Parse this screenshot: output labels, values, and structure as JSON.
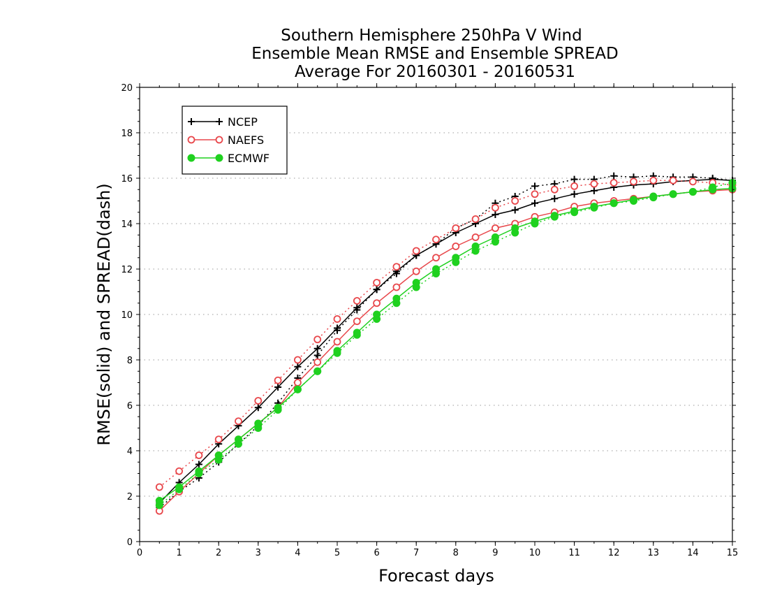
{
  "chart_data": {
    "type": "line",
    "title": [
      "Southern Hemisphere 250hPa V Wind",
      "Ensemble Mean RMSE and Ensemble SPREAD",
      "Average For 20160301 - 20160531"
    ],
    "xlabel": "Forecast days",
    "ylabel": "RMSE(solid) and SPREAD(dash)",
    "xlim": [
      0,
      15
    ],
    "ylim": [
      0,
      20
    ],
    "x_ticks": [
      "0",
      "1",
      "2",
      "3",
      "4",
      "5",
      "6",
      "7",
      "8",
      "9",
      "10",
      "11",
      "12",
      "13",
      "14",
      "15"
    ],
    "y_ticks": [
      "0",
      "2",
      "4",
      "6",
      "8",
      "10",
      "12",
      "14",
      "16",
      "18",
      "20"
    ],
    "grid": "dotted",
    "legend_position": "top-left",
    "x": [
      0.5,
      1.0,
      1.5,
      2.0,
      2.5,
      3.0,
      3.5,
      4.0,
      4.5,
      5.0,
      5.5,
      6.0,
      6.5,
      7.0,
      7.5,
      8.0,
      8.5,
      9.0,
      9.5,
      10.0,
      10.5,
      11.0,
      11.5,
      12.0,
      12.5,
      13.0,
      13.5,
      14.0,
      14.5,
      15.0
    ],
    "series": [
      {
        "name": "NCEP",
        "color": "#000000",
        "marker": "plus",
        "rmse": [
          1.7,
          2.6,
          3.4,
          4.3,
          5.1,
          5.9,
          6.8,
          7.7,
          8.5,
          9.4,
          10.3,
          11.1,
          11.9,
          12.6,
          13.1,
          13.6,
          14.0,
          14.4,
          14.6,
          14.9,
          15.1,
          15.3,
          15.45,
          15.6,
          15.7,
          15.75,
          15.85,
          15.9,
          15.95,
          15.9
        ],
        "spread": [
          1.5,
          2.2,
          2.8,
          3.5,
          4.3,
          5.1,
          6.1,
          7.2,
          8.2,
          9.3,
          10.2,
          11.1,
          11.8,
          12.6,
          13.1,
          13.8,
          14.2,
          14.9,
          15.2,
          15.65,
          15.75,
          15.95,
          15.95,
          16.1,
          16.05,
          16.1,
          16.05,
          16.05,
          16.0,
          15.9
        ]
      },
      {
        "name": "NAEFS",
        "color": "#e8474b",
        "marker": "open-circle",
        "rmse": [
          1.35,
          2.2,
          3.0,
          3.8,
          4.5,
          5.2,
          5.9,
          7.0,
          7.9,
          8.8,
          9.7,
          10.5,
          11.2,
          11.9,
          12.5,
          13.0,
          13.4,
          13.8,
          14.0,
          14.3,
          14.5,
          14.75,
          14.9,
          15.0,
          15.1,
          15.2,
          15.3,
          15.4,
          15.45,
          15.5
        ],
        "spread": [
          2.4,
          3.1,
          3.8,
          4.5,
          5.3,
          6.2,
          7.1,
          8.0,
          8.9,
          9.8,
          10.6,
          11.4,
          12.1,
          12.8,
          13.3,
          13.8,
          14.2,
          14.7,
          15.0,
          15.3,
          15.5,
          15.65,
          15.75,
          15.8,
          15.85,
          15.9,
          15.9,
          15.85,
          15.8,
          15.7
        ]
      },
      {
        "name": "ECMWF",
        "color": "#1fd11f",
        "marker": "filled-circle",
        "rmse": [
          1.8,
          2.4,
          3.1,
          3.8,
          4.5,
          5.2,
          5.9,
          6.7,
          7.5,
          8.4,
          9.2,
          10.0,
          10.7,
          11.4,
          12.0,
          12.5,
          13.0,
          13.4,
          13.8,
          14.1,
          14.35,
          14.55,
          14.75,
          14.9,
          15.05,
          15.2,
          15.3,
          15.4,
          15.5,
          15.55
        ],
        "spread": [
          1.6,
          2.3,
          3.0,
          3.6,
          4.3,
          5.0,
          5.8,
          6.7,
          7.5,
          8.3,
          9.1,
          9.8,
          10.5,
          11.2,
          11.8,
          12.3,
          12.8,
          13.2,
          13.6,
          14.0,
          14.3,
          14.5,
          14.7,
          14.9,
          15.0,
          15.15,
          15.3,
          15.4,
          15.6,
          15.8
        ]
      }
    ]
  }
}
